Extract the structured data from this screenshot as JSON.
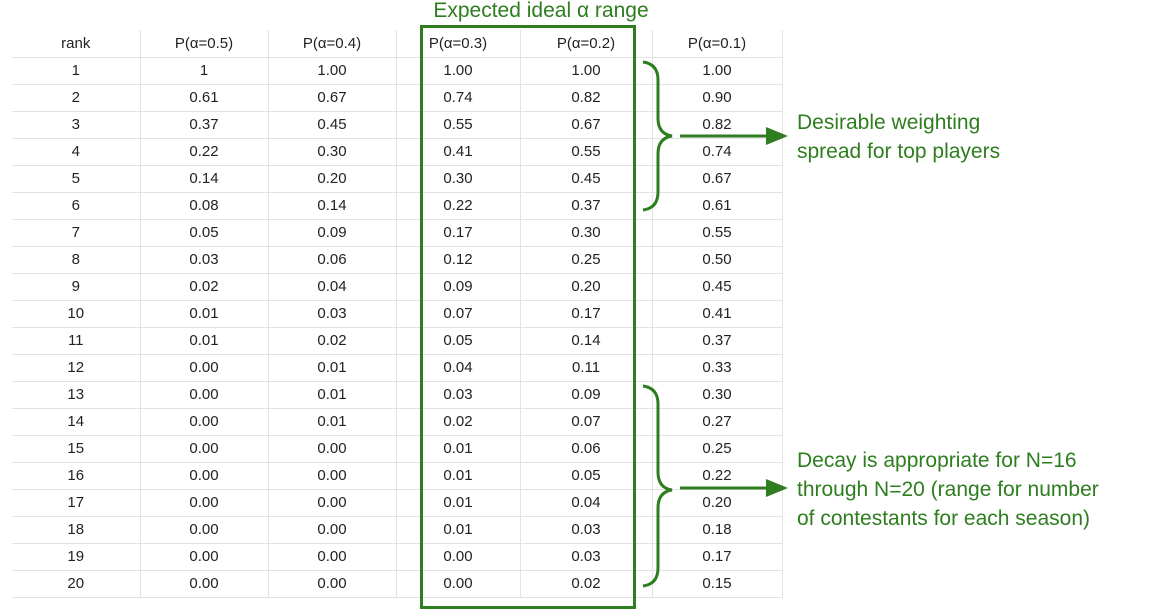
{
  "table": {
    "headers": [
      "rank",
      "P(α=0.5)",
      "P(α=0.4)",
      "P(α=0.3)",
      "P(α=0.2)",
      "P(α=0.1)"
    ],
    "rows": [
      [
        "1",
        "1",
        "1.00",
        "1.00",
        "1.00",
        "1.00"
      ],
      [
        "2",
        "0.61",
        "0.67",
        "0.74",
        "0.82",
        "0.90"
      ],
      [
        "3",
        "0.37",
        "0.45",
        "0.55",
        "0.67",
        "0.82"
      ],
      [
        "4",
        "0.22",
        "0.30",
        "0.41",
        "0.55",
        "0.74"
      ],
      [
        "5",
        "0.14",
        "0.20",
        "0.30",
        "0.45",
        "0.67"
      ],
      [
        "6",
        "0.08",
        "0.14",
        "0.22",
        "0.37",
        "0.61"
      ],
      [
        "7",
        "0.05",
        "0.09",
        "0.17",
        "0.30",
        "0.55"
      ],
      [
        "8",
        "0.03",
        "0.06",
        "0.12",
        "0.25",
        "0.50"
      ],
      [
        "9",
        "0.02",
        "0.04",
        "0.09",
        "0.20",
        "0.45"
      ],
      [
        "10",
        "0.01",
        "0.03",
        "0.07",
        "0.17",
        "0.41"
      ],
      [
        "11",
        "0.01",
        "0.02",
        "0.05",
        "0.14",
        "0.37"
      ],
      [
        "12",
        "0.00",
        "0.01",
        "0.04",
        "0.11",
        "0.33"
      ],
      [
        "13",
        "0.00",
        "0.01",
        "0.03",
        "0.09",
        "0.30"
      ],
      [
        "14",
        "0.00",
        "0.01",
        "0.02",
        "0.07",
        "0.27"
      ],
      [
        "15",
        "0.00",
        "0.00",
        "0.01",
        "0.06",
        "0.25"
      ],
      [
        "16",
        "0.00",
        "0.00",
        "0.01",
        "0.05",
        "0.22"
      ],
      [
        "17",
        "0.00",
        "0.00",
        "0.01",
        "0.04",
        "0.20"
      ],
      [
        "18",
        "0.00",
        "0.00",
        "0.01",
        "0.03",
        "0.18"
      ],
      [
        "19",
        "0.00",
        "0.00",
        "0.00",
        "0.03",
        "0.17"
      ],
      [
        "20",
        "0.00",
        "0.00",
        "0.00",
        "0.02",
        "0.15"
      ]
    ]
  },
  "annotations": {
    "range_title": "Expected ideal α range",
    "top_note": "Desirable weighting\nspread for top players",
    "bottom_note": "Decay is appropriate for N=16\nthrough N=20 (range for number\nof contestants for each season)"
  },
  "colors": {
    "accent": "#2e7d1f",
    "grid": "#e3e3e3",
    "text": "#222222"
  }
}
